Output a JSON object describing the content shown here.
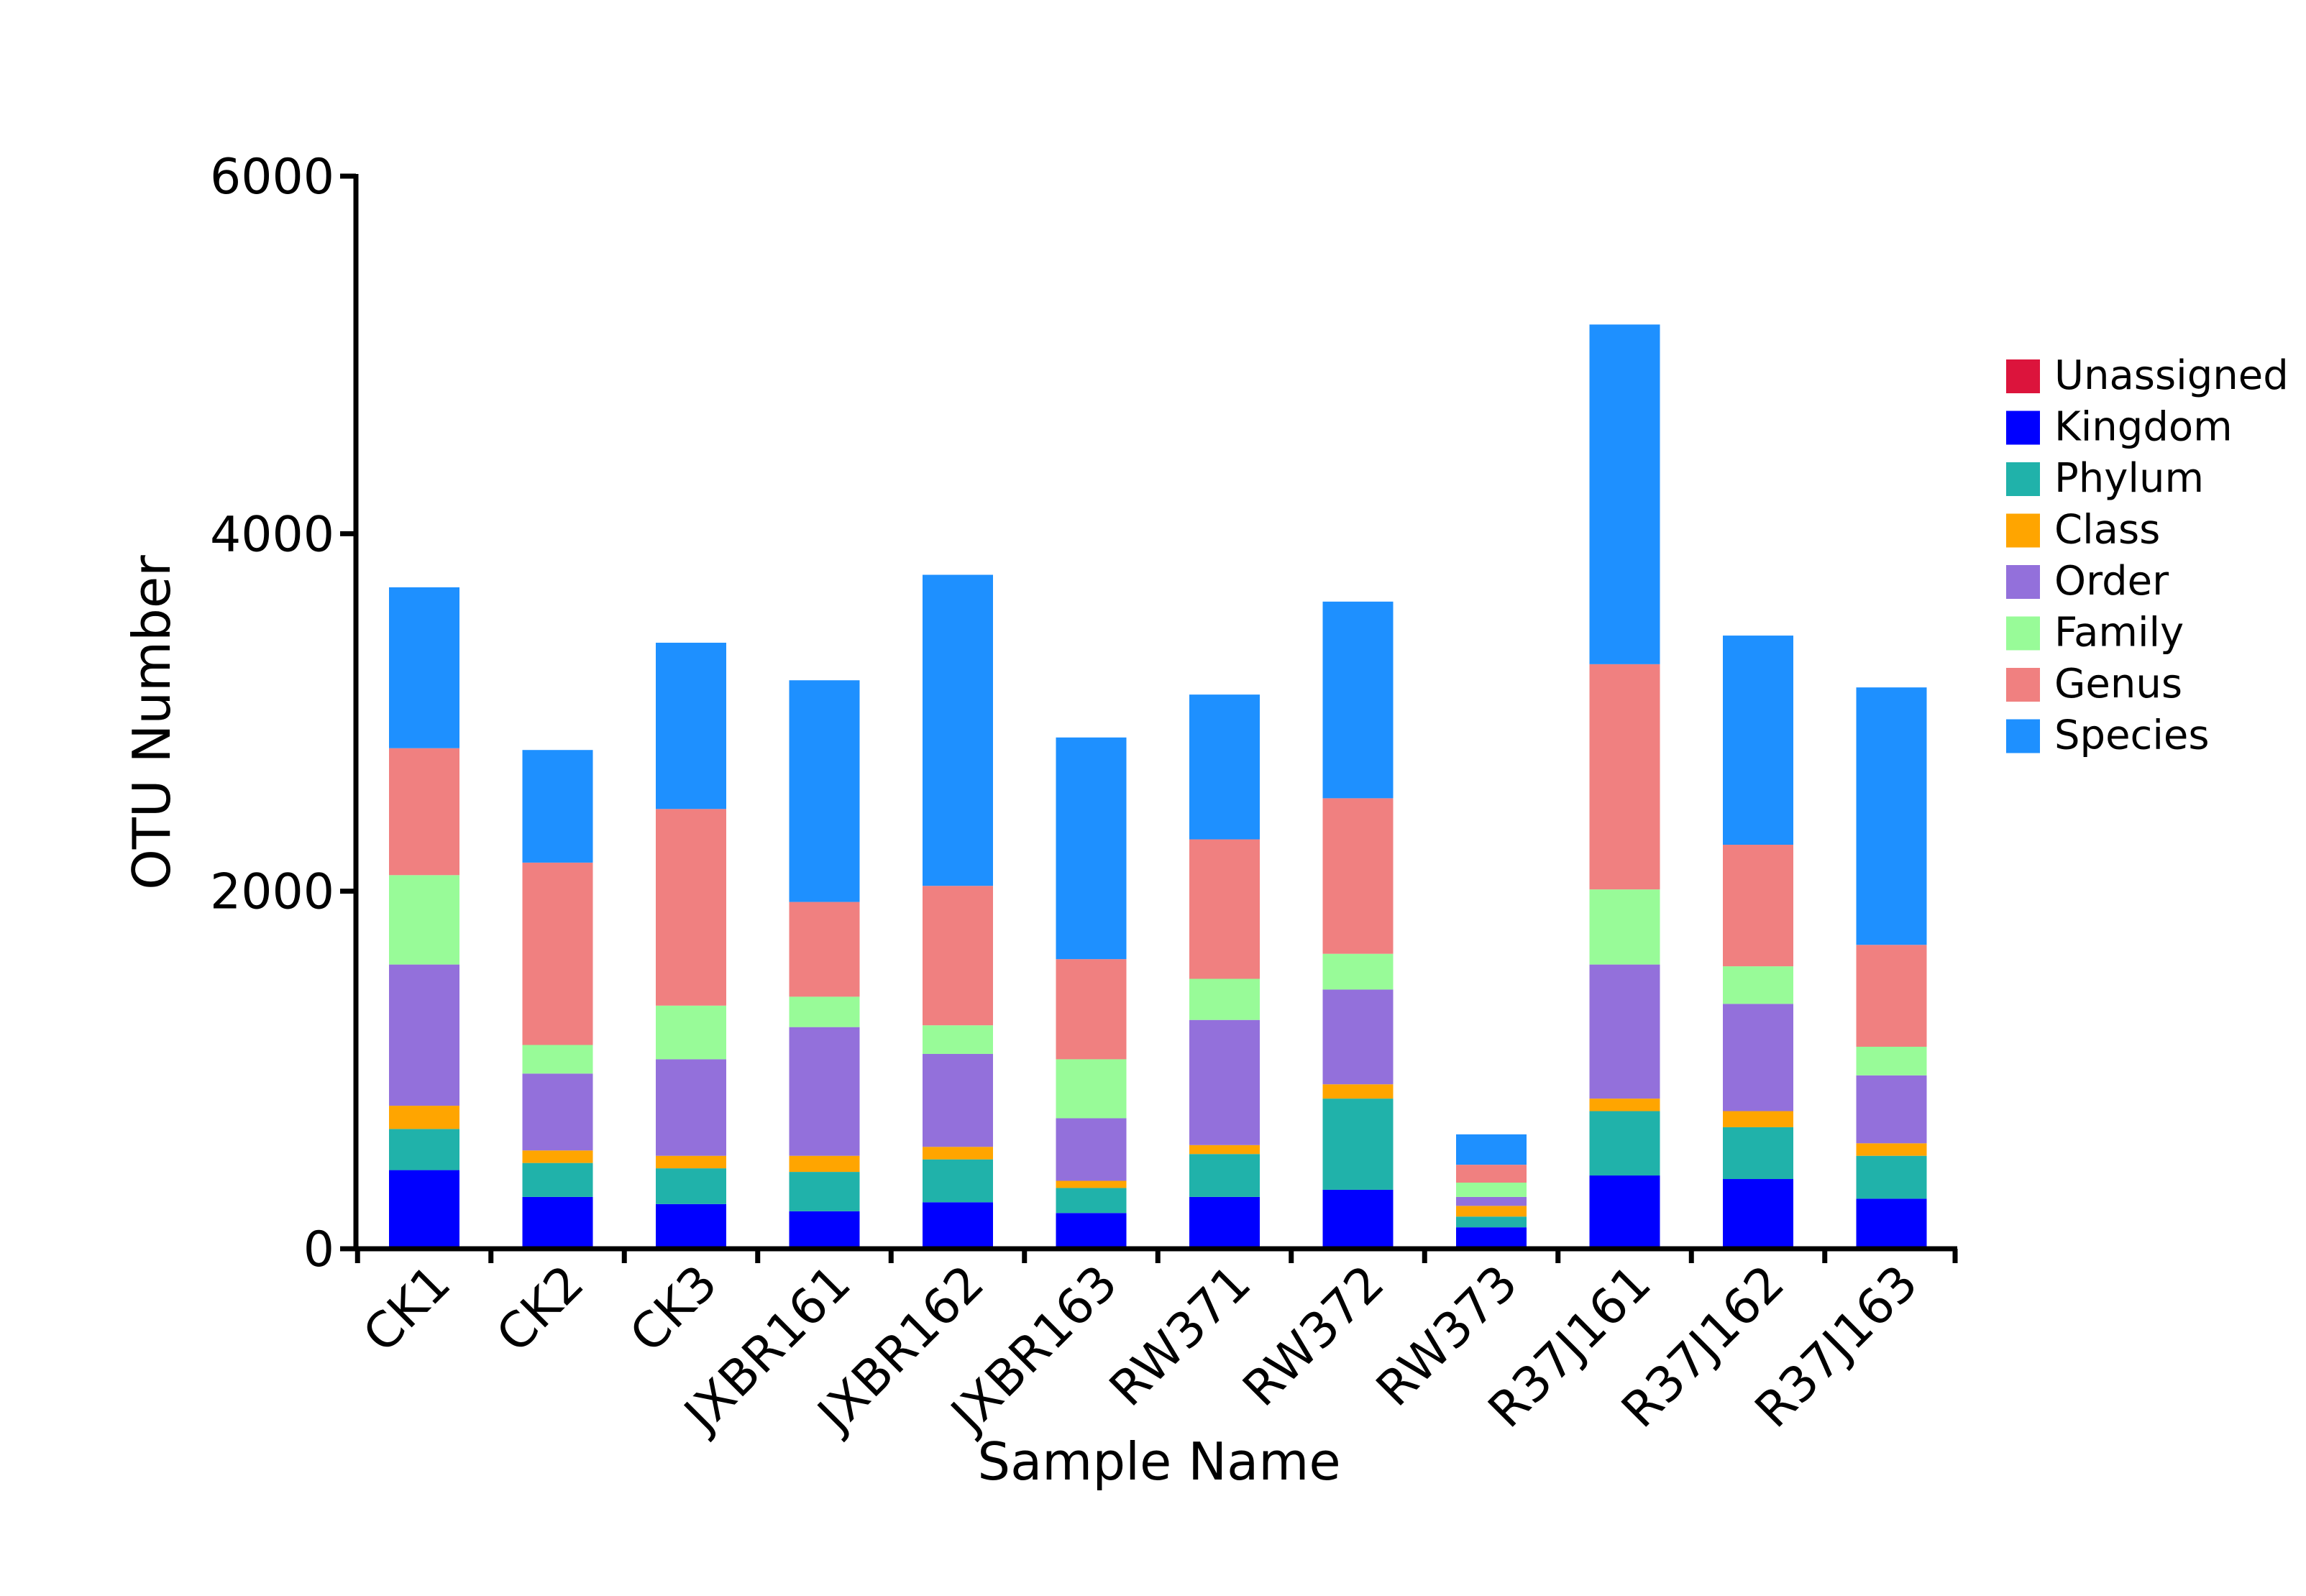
{
  "chart_data": {
    "type": "bar",
    "stacked": true,
    "xlabel": "Sample Name",
    "ylabel": "OTU Number",
    "ylim": [
      0,
      6000
    ],
    "yticks": [
      0,
      2000,
      4000,
      6000
    ],
    "legend_position": "right",
    "categories": [
      "CK1",
      "CK2",
      "CK3",
      "JXBR161",
      "JXBR162",
      "JXBR163",
      "RW371",
      "RW372",
      "RW373",
      "R37J161",
      "R37J162",
      "R37J163"
    ],
    "series": [
      {
        "name": "Unassigned",
        "color": "#DC143C",
        "values": [
          0,
          0,
          0,
          0,
          0,
          0,
          0,
          0,
          0,
          0,
          0,
          0
        ]
      },
      {
        "name": "Kingdom",
        "color": "#0000FF",
        "values": [
          440,
          290,
          250,
          210,
          260,
          200,
          290,
          330,
          120,
          410,
          390,
          280
        ]
      },
      {
        "name": "Phylum",
        "color": "#20B2AA",
        "values": [
          230,
          190,
          200,
          220,
          240,
          140,
          240,
          510,
          60,
          360,
          290,
          240
        ]
      },
      {
        "name": "Class",
        "color": "#FFA500",
        "values": [
          130,
          70,
          70,
          90,
          70,
          40,
          50,
          80,
          60,
          70,
          90,
          70
        ]
      },
      {
        "name": "Order",
        "color": "#9370DB",
        "values": [
          790,
          430,
          540,
          720,
          520,
          350,
          700,
          530,
          50,
          750,
          600,
          380
        ]
      },
      {
        "name": "Family",
        "color": "#98FB98",
        "values": [
          500,
          160,
          300,
          170,
          160,
          330,
          230,
          200,
          80,
          420,
          210,
          160
        ]
      },
      {
        "name": "Genus",
        "color": "#F08080",
        "values": [
          710,
          1020,
          1100,
          530,
          780,
          560,
          780,
          870,
          100,
          1260,
          680,
          570
        ]
      },
      {
        "name": "Species",
        "color": "#1E90FF",
        "values": [
          900,
          630,
          930,
          1240,
          1740,
          1240,
          810,
          1100,
          170,
          1900,
          1170,
          1440
        ]
      }
    ]
  }
}
